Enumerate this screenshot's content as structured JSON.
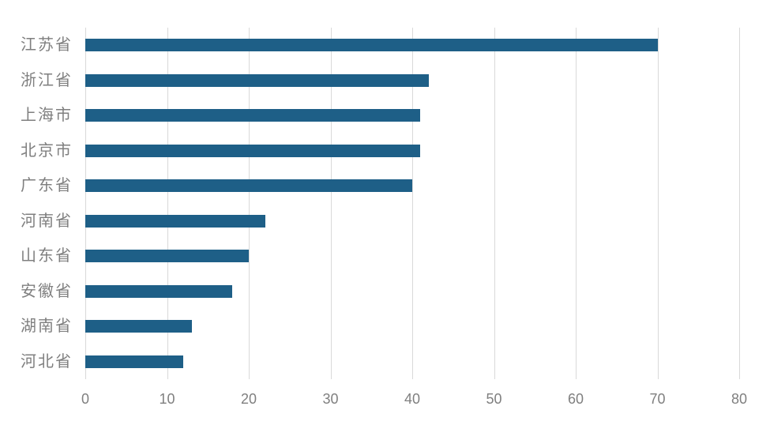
{
  "chart_data": {
    "type": "bar",
    "orientation": "horizontal",
    "title": "",
    "xlabel": "",
    "ylabel": "",
    "categories": [
      "江苏省",
      "浙江省",
      "上海市",
      "北京市",
      "广东省",
      "河南省",
      "山东省",
      "安徽省",
      "湖南省",
      "河北省"
    ],
    "values": [
      70,
      42,
      41,
      41,
      40,
      22,
      20,
      18,
      13,
      12
    ],
    "xlim": [
      0,
      80
    ],
    "xticks": [
      0,
      10,
      20,
      30,
      40,
      50,
      60,
      70,
      80
    ],
    "grid": true,
    "legend": false,
    "colors": {
      "bar": "#1e5f87",
      "gridline": "#d9d9d9",
      "tick_label": "#7f7f7f",
      "category_label": "#7f7f7f",
      "background": "#ffffff"
    }
  }
}
